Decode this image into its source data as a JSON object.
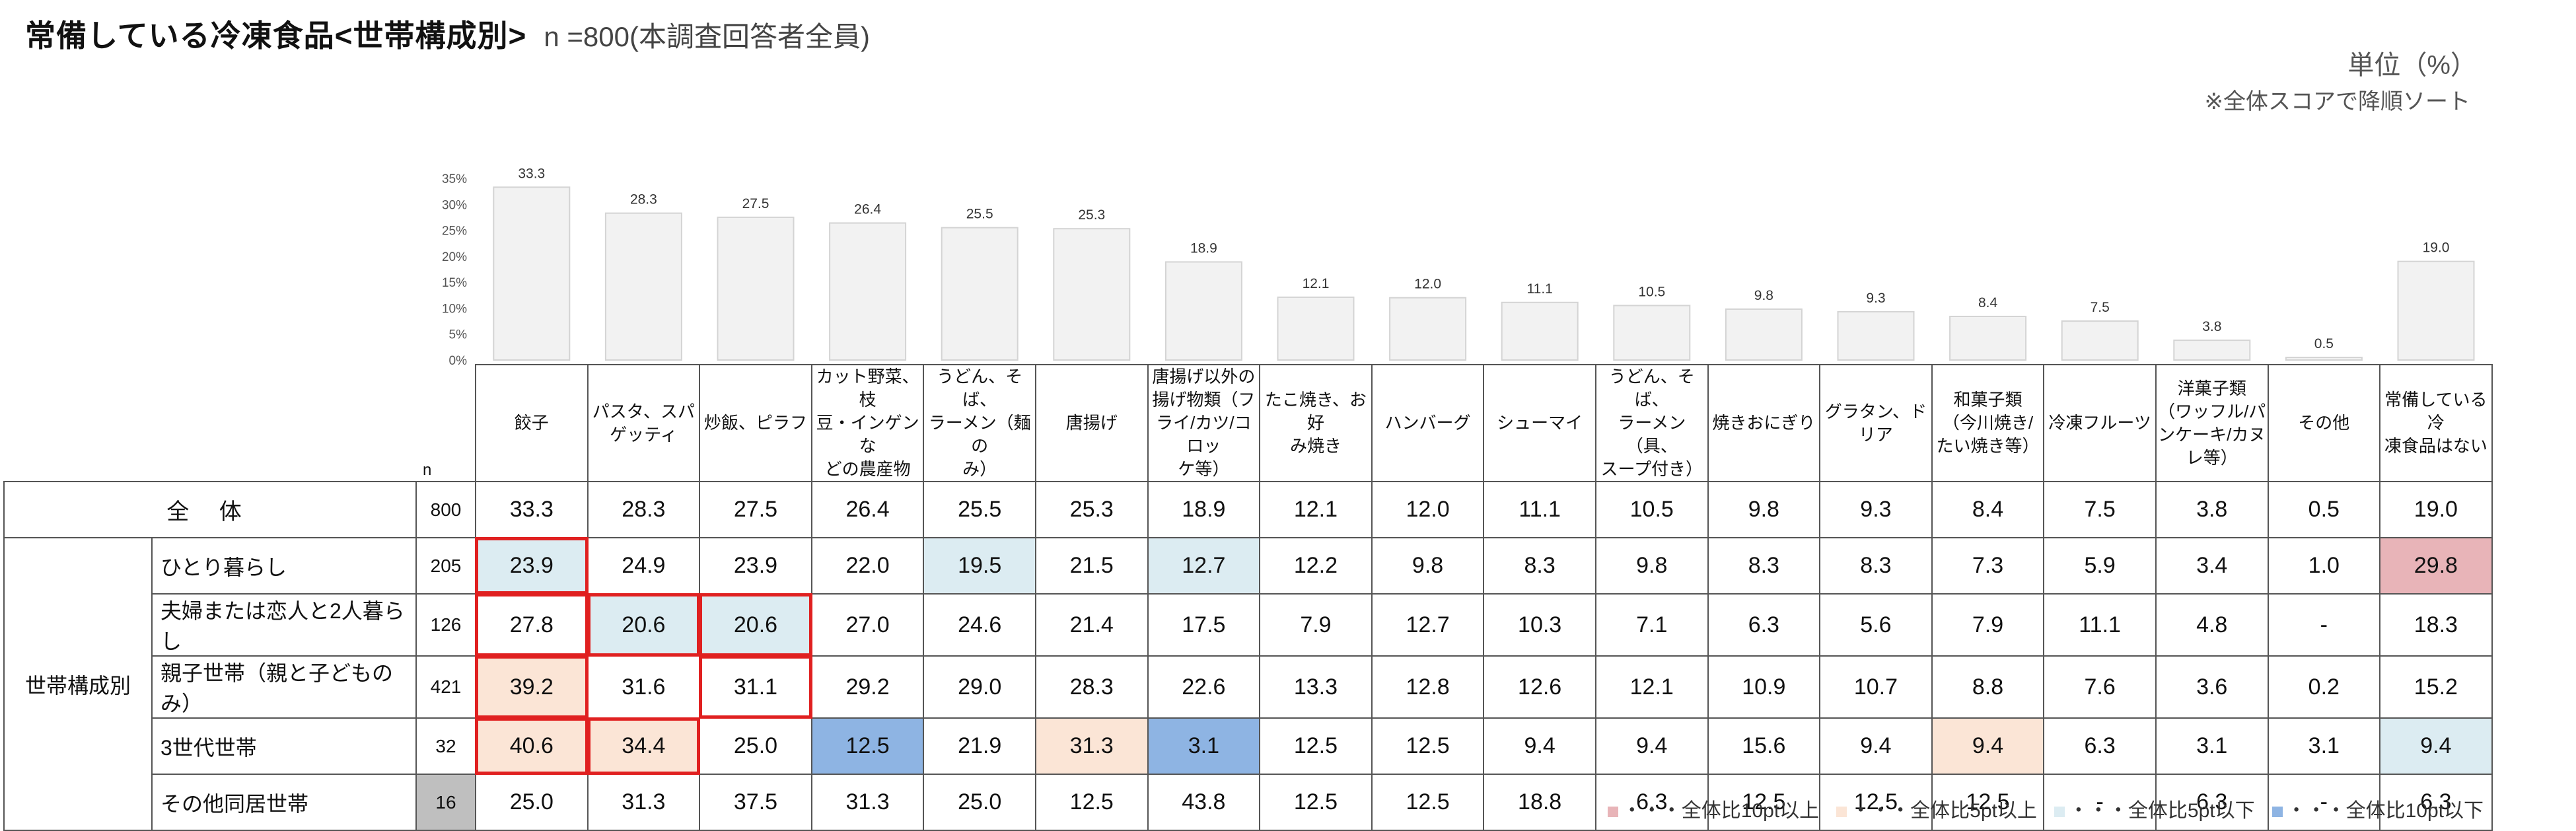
{
  "title": "常備している冷凍食品<世帯構成別>",
  "subtitle": "n =800(本調査回答者全員)",
  "unit": "単位（%）",
  "sort_note": "※全体スコアで降順ソート",
  "n_header": "n",
  "total_label": "全 体",
  "group_label": "世帯構成別",
  "colors": {
    "red_strong": "#e8b4b8",
    "red_light": "#fbe5d6",
    "blue_light": "#dcecf2",
    "blue_strong": "#8eb4e3",
    "bar": "#f2f2f2",
    "bar_border": "#d4d4d4",
    "na": "#bfbfbf"
  },
  "legend": [
    {
      "label": "・・・全体比10pt以上",
      "color": "#e8b4b8"
    },
    {
      "label": "・・・全体比5pt以上",
      "color": "#fbe5d6"
    },
    {
      "label": "・・・全体比5pt以下",
      "color": "#dcecf2"
    },
    {
      "label": "・・・全体比10pt以下",
      "color": "#8eb4e3"
    }
  ],
  "chart_data": {
    "type": "bar",
    "categories": [
      "餃子",
      "パスタ、スパゲッティ",
      "炒飯、ピラフ",
      "カット野菜、枝豆・インゲンなどの農産物",
      "うどん、そば、ラーメン（麺のみ）",
      "唐揚げ",
      "唐揚げ以外の揚げ物類（フライ/カツ/コロッケ等）",
      "たこ焼き、お好み焼き",
      "ハンバーグ",
      "シューマイ",
      "うどん、そば、ラーメン（具、スープ付き）",
      "焼きおにぎり",
      "グラタン、ドリア",
      "和菓子類（今川焼き/たい焼き等）",
      "冷凍フルーツ",
      "洋菓子類（ワッフル/パンケーキ/カヌレ等）",
      "その他",
      "常備している冷凍食品はない"
    ],
    "header_lines": [
      [
        "餃子"
      ],
      [
        "パスタ、スパ",
        "ゲッティ"
      ],
      [
        "炒飯、ピラフ"
      ],
      [
        "カット野菜、枝",
        "豆・インゲンな",
        "どの農産物"
      ],
      [
        "うどん、そば、",
        "ラーメン（麺の",
        "み）"
      ],
      [
        "唐揚げ"
      ],
      [
        "唐揚げ以外の",
        "揚げ物類（フ",
        "ライ/カツ/コロッ",
        "ケ等）"
      ],
      [
        "たこ焼き、お好",
        "み焼き"
      ],
      [
        "ハンバーグ"
      ],
      [
        "シューマイ"
      ],
      [
        "うどん、そば、",
        "ラーメン（具、",
        "スープ付き）"
      ],
      [
        "焼きおにぎり"
      ],
      [
        "グラタン、ドリア"
      ],
      [
        "和菓子類",
        "（今川焼き/",
        "たい焼き等）"
      ],
      [
        "冷凍フルーツ"
      ],
      [
        "洋菓子類",
        "（ワッフル/パ",
        "ンケーキ/カヌ",
        "レ等）"
      ],
      [
        "その他"
      ],
      [
        "常備している冷",
        "凍食品はない"
      ]
    ],
    "values": [
      33.3,
      28.3,
      27.5,
      26.4,
      25.5,
      25.3,
      18.9,
      12.1,
      12.0,
      11.1,
      10.5,
      9.8,
      9.3,
      8.4,
      7.5,
      3.8,
      0.5,
      19.0
    ],
    "value_labels": [
      "33.3",
      "28.3",
      "27.5",
      "26.4",
      "25.5",
      "25.3",
      "18.9",
      "12.1",
      "12.0",
      "11.1",
      "10.5",
      "9.8",
      "9.3",
      "8.4",
      "7.5",
      "3.8",
      "0.5",
      "19.0"
    ],
    "ylim": [
      0,
      35
    ],
    "yticks": [
      "0%",
      "5%",
      "10%",
      "15%",
      "20%",
      "25%",
      "30%",
      "35%"
    ],
    "table": {
      "total": {
        "n": "800",
        "values": [
          "33.3",
          "28.3",
          "27.5",
          "26.4",
          "25.5",
          "25.3",
          "18.9",
          "12.1",
          "12.0",
          "11.1",
          "10.5",
          "9.8",
          "9.3",
          "8.4",
          "7.5",
          "3.8",
          "0.5",
          "19.0"
        ]
      },
      "rows": [
        {
          "label": "ひとり暮らし",
          "n": "205",
          "values": [
            "23.9",
            "24.9",
            "23.9",
            "22.0",
            "19.5",
            "21.5",
            "12.7",
            "12.2",
            "9.8",
            "8.3",
            "9.8",
            "8.3",
            "8.3",
            "7.3",
            "5.9",
            "3.4",
            "1.0",
            "29.8"
          ]
        },
        {
          "label": "夫婦または恋人と2人暮らし",
          "n": "126",
          "values": [
            "27.8",
            "20.6",
            "20.6",
            "27.0",
            "24.6",
            "21.4",
            "17.5",
            "7.9",
            "12.7",
            "10.3",
            "7.1",
            "6.3",
            "5.6",
            "7.9",
            "11.1",
            "4.8",
            "-",
            "18.3"
          ]
        },
        {
          "label": "親子世帯（親と子どものみ）",
          "n": "421",
          "values": [
            "39.2",
            "31.6",
            "31.1",
            "29.2",
            "29.0",
            "28.3",
            "22.6",
            "13.3",
            "12.8",
            "12.6",
            "12.1",
            "10.9",
            "10.7",
            "8.8",
            "7.6",
            "3.6",
            "0.2",
            "15.2"
          ]
        },
        {
          "label": "3世代世帯",
          "n": "32",
          "values": [
            "40.6",
            "34.4",
            "25.0",
            "12.5",
            "21.9",
            "31.3",
            "3.1",
            "12.5",
            "12.5",
            "9.4",
            "9.4",
            "15.6",
            "9.4",
            "9.4",
            "6.3",
            "3.1",
            "3.1",
            "9.4"
          ]
        },
        {
          "label": "その他同居世帯",
          "n": "16",
          "values": [
            "25.0",
            "31.3",
            "37.5",
            "31.3",
            "25.0",
            "12.5",
            "43.8",
            "12.5",
            "12.5",
            "18.8",
            "6.3",
            "12.5",
            "12.5",
            "12.5",
            "-",
            "6.3",
            "-",
            "6.3"
          ]
        }
      ],
      "highlights": [
        [
          "bl",
          "",
          "",
          "",
          "bl",
          "",
          "bl",
          "",
          "",
          "",
          "",
          "",
          "",
          "",
          "",
          "",
          "",
          "rs"
        ],
        [
          "",
          "bl",
          "bl",
          "",
          "",
          "",
          "",
          "",
          "",
          "",
          "",
          "",
          "",
          "",
          "",
          "",
          "",
          ""
        ],
        [
          "rl",
          "",
          "",
          "",
          "",
          "",
          "",
          "",
          "",
          "",
          "",
          "",
          "",
          "",
          "",
          "",
          "",
          ""
        ],
        [
          "rl",
          "rl",
          "",
          "bs",
          "",
          "rl",
          "bs",
          "",
          "",
          "",
          "",
          "",
          "",
          "rl",
          "",
          "",
          "",
          "bl"
        ],
        [
          "",
          "",
          "",
          "",
          "",
          "",
          "",
          "",
          "",
          "",
          "",
          "",
          "",
          "",
          "",
          "",
          "",
          ""
        ]
      ],
      "boxed": [
        [
          "box",
          "",
          "",
          "",
          "",
          "",
          "",
          "",
          "",
          "",
          "",
          "",
          "",
          "",
          "",
          "",
          "",
          ""
        ],
        [
          "box",
          "box",
          "box",
          "",
          "",
          "",
          "",
          "",
          "",
          "",
          "",
          "",
          "",
          "",
          "",
          "",
          "",
          ""
        ],
        [
          "box",
          "",
          "box",
          "",
          "",
          "",
          "",
          "",
          "",
          "",
          "",
          "",
          "",
          "",
          "",
          "",
          "",
          ""
        ],
        [
          "box",
          "box",
          "",
          "",
          "",
          "",
          "",
          "",
          "",
          "",
          "",
          "",
          "",
          "",
          "",
          "",
          "",
          ""
        ],
        [
          "",
          "",
          "",
          "",
          "",
          "",
          "",
          "",
          "",
          "",
          "",
          "",
          "",
          "",
          "",
          "",
          "",
          ""
        ]
      ],
      "na_n_rows": [
        4
      ]
    }
  }
}
